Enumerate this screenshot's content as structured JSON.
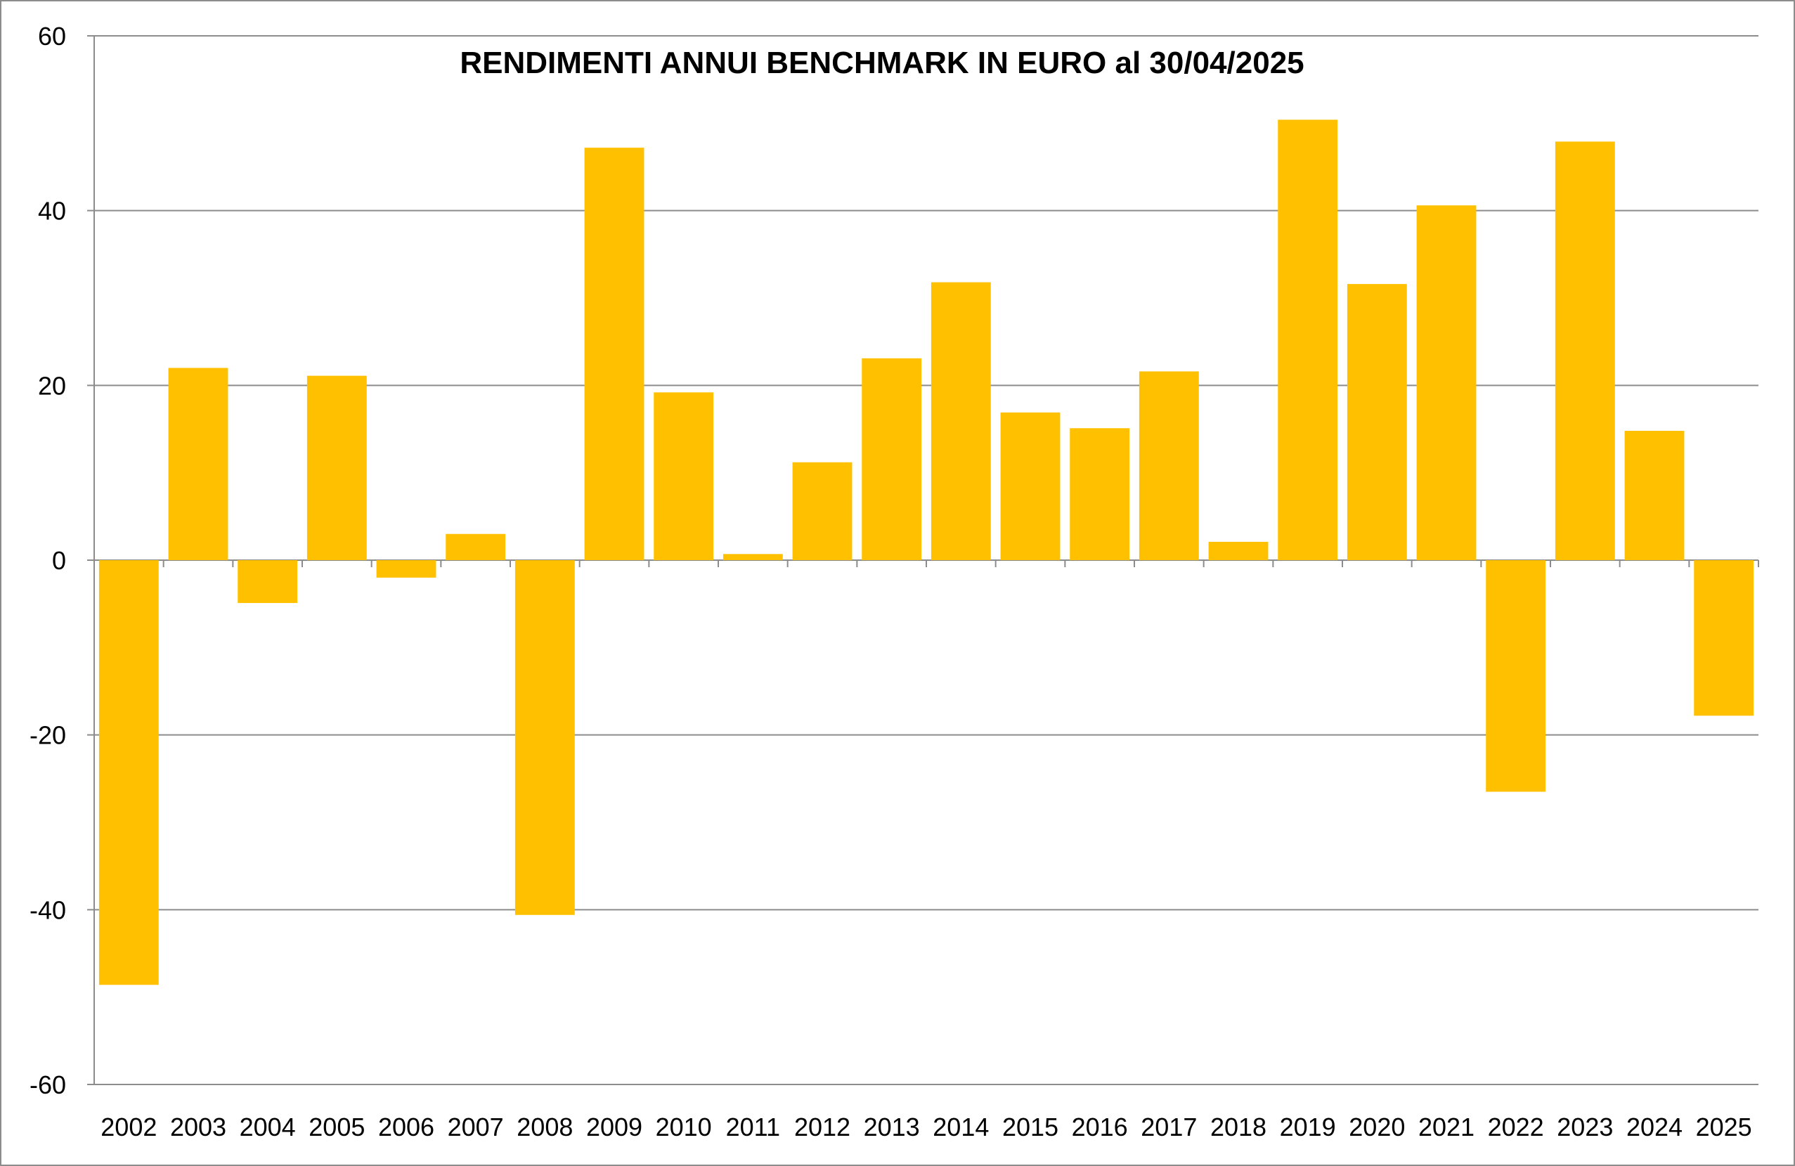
{
  "chart_data": {
    "type": "bar",
    "title": "RENDIMENTI ANNUI BENCHMARK IN EURO al 30/04/2025",
    "xlabel": "",
    "ylabel": "",
    "categories": [
      "2002",
      "2003",
      "2004",
      "2005",
      "2006",
      "2007",
      "2008",
      "2009",
      "2010",
      "2011",
      "2012",
      "2013",
      "2014",
      "2015",
      "2016",
      "2017",
      "2018",
      "2019",
      "2020",
      "2021",
      "2022",
      "2023",
      "2024",
      "2025"
    ],
    "values": [
      -48.6,
      22.0,
      -4.9,
      21.1,
      -2.0,
      3.0,
      -40.6,
      47.2,
      19.2,
      0.7,
      11.2,
      23.1,
      31.8,
      16.9,
      15.1,
      21.6,
      2.1,
      50.4,
      31.6,
      40.6,
      -26.5,
      47.9,
      14.8,
      -17.8
    ],
    "ylim": [
      -60,
      60
    ],
    "yticks": [
      60,
      40,
      20,
      0,
      -20,
      -40,
      -60
    ],
    "grid": true,
    "legend": "none",
    "bar_color": "#FFC000",
    "grid_color": "#8C8C8C"
  }
}
